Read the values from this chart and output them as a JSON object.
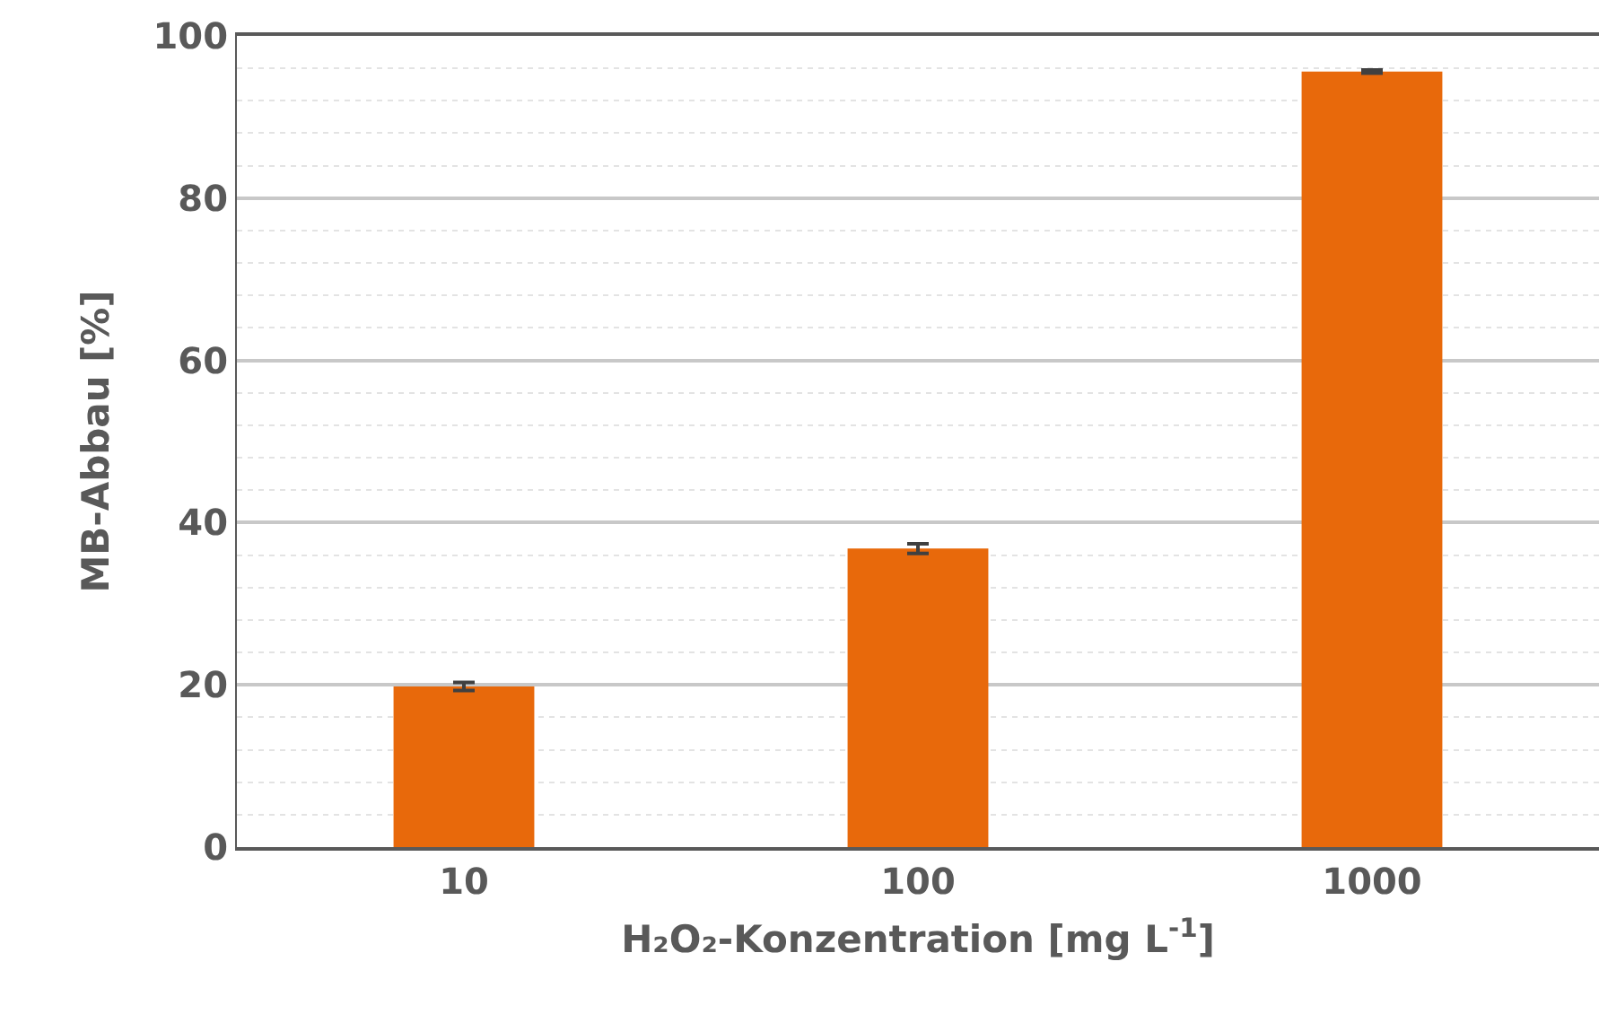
{
  "chart_data": {
    "type": "bar",
    "xlabel": "H₂O₂-Konzentration [mg L$^{-1}$]",
    "ylabel": "MB-Abbau [%]",
    "categories": [
      "10",
      "100",
      "1000"
    ],
    "values": [
      19.8,
      36.8,
      95.6
    ],
    "errors": [
      0.5,
      0.6,
      0.2
    ],
    "color": "#e8690b",
    "ylim": [
      0,
      100
    ],
    "yticks": [
      0,
      20,
      40,
      60,
      80,
      100
    ],
    "grid": "y"
  }
}
